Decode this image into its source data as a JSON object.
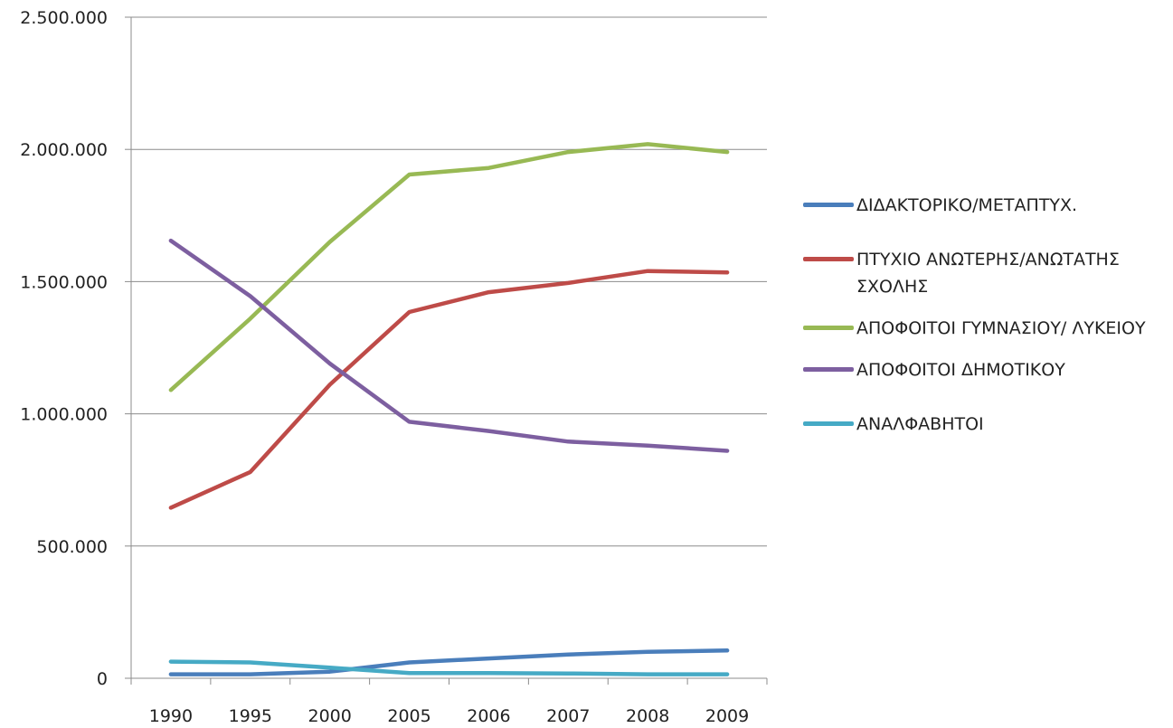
{
  "chart_data": {
    "type": "line",
    "categories": [
      "1990",
      "1995",
      "2000",
      "2005",
      "2006",
      "2007",
      "2008",
      "2009"
    ],
    "y_ticks": [
      "0",
      "500.000",
      "1.000.000",
      "1.500.000",
      "2.000.000",
      "2.500.000"
    ],
    "ylim": [
      0,
      2500000
    ],
    "grid": "horizontal",
    "legend_position": "right",
    "series": [
      {
        "name": "ΔΙΔΑΚΤΟΡΙΚΟ/ΜΕΤΑΠΤΥΧ.",
        "color": "#4a7ebb",
        "values": [
          15000,
          15000,
          25000,
          60000,
          75000,
          90000,
          100000,
          105000
        ]
      },
      {
        "name": "ΠΤΥΧΙΟ ΑΝΩΤΕΡΗΣ/ΑΝΩΤΑΤΗΣ ΣΧΟΛΗΣ",
        "color": "#be4b48",
        "values": [
          645000,
          780000,
          1110000,
          1385000,
          1460000,
          1495000,
          1540000,
          1535000
        ]
      },
      {
        "name": "ΑΠΟΦΟΙΤΟΙ ΓΥΜΝΑΣΙΟΥ/ ΛΥΚΕΙΟΥ",
        "color": "#98b954",
        "values": [
          1090000,
          1360000,
          1650000,
          1905000,
          1930000,
          1990000,
          2020000,
          1990000
        ]
      },
      {
        "name": "ΑΠΟΦΟΙΤΟΙ ΔΗΜΟΤΙΚΟΥ",
        "color": "#7d5fa0",
        "values": [
          1655000,
          1445000,
          1190000,
          970000,
          935000,
          895000,
          880000,
          860000
        ]
      },
      {
        "name": "ΑΝΑΛΦΑΒΗΤΟΙ",
        "color": "#46aac5",
        "values": [
          63000,
          60000,
          40000,
          20000,
          20000,
          18000,
          15000,
          15000
        ]
      }
    ]
  }
}
